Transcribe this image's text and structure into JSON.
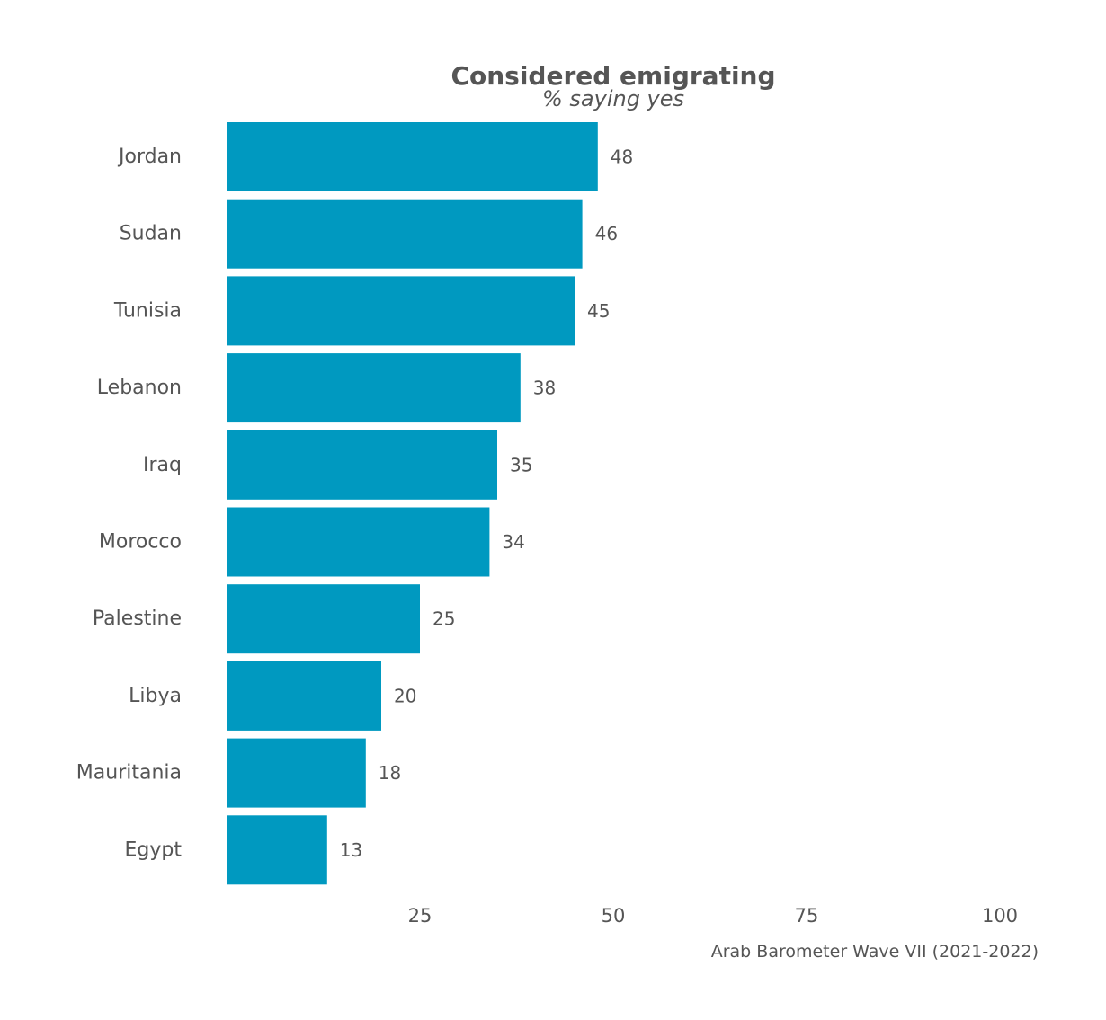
{
  "chart_data": {
    "type": "bar",
    "orientation": "horizontal",
    "title": "Considered emigrating",
    "subtitle": "% saying yes",
    "caption": "Arab Barometer Wave VII (2021-2022)",
    "categories": [
      "Jordan",
      "Sudan",
      "Tunisia",
      "Lebanon",
      "Iraq",
      "Morocco",
      "Palestine",
      "Libya",
      "Mauritania",
      "Egypt"
    ],
    "values": [
      48,
      46,
      45,
      38,
      35,
      34,
      25,
      20,
      18,
      13
    ],
    "xticks": [
      25,
      50,
      75,
      100
    ],
    "xlim": [
      0,
      100
    ],
    "grid": false,
    "bar_color": "#0099c0"
  }
}
